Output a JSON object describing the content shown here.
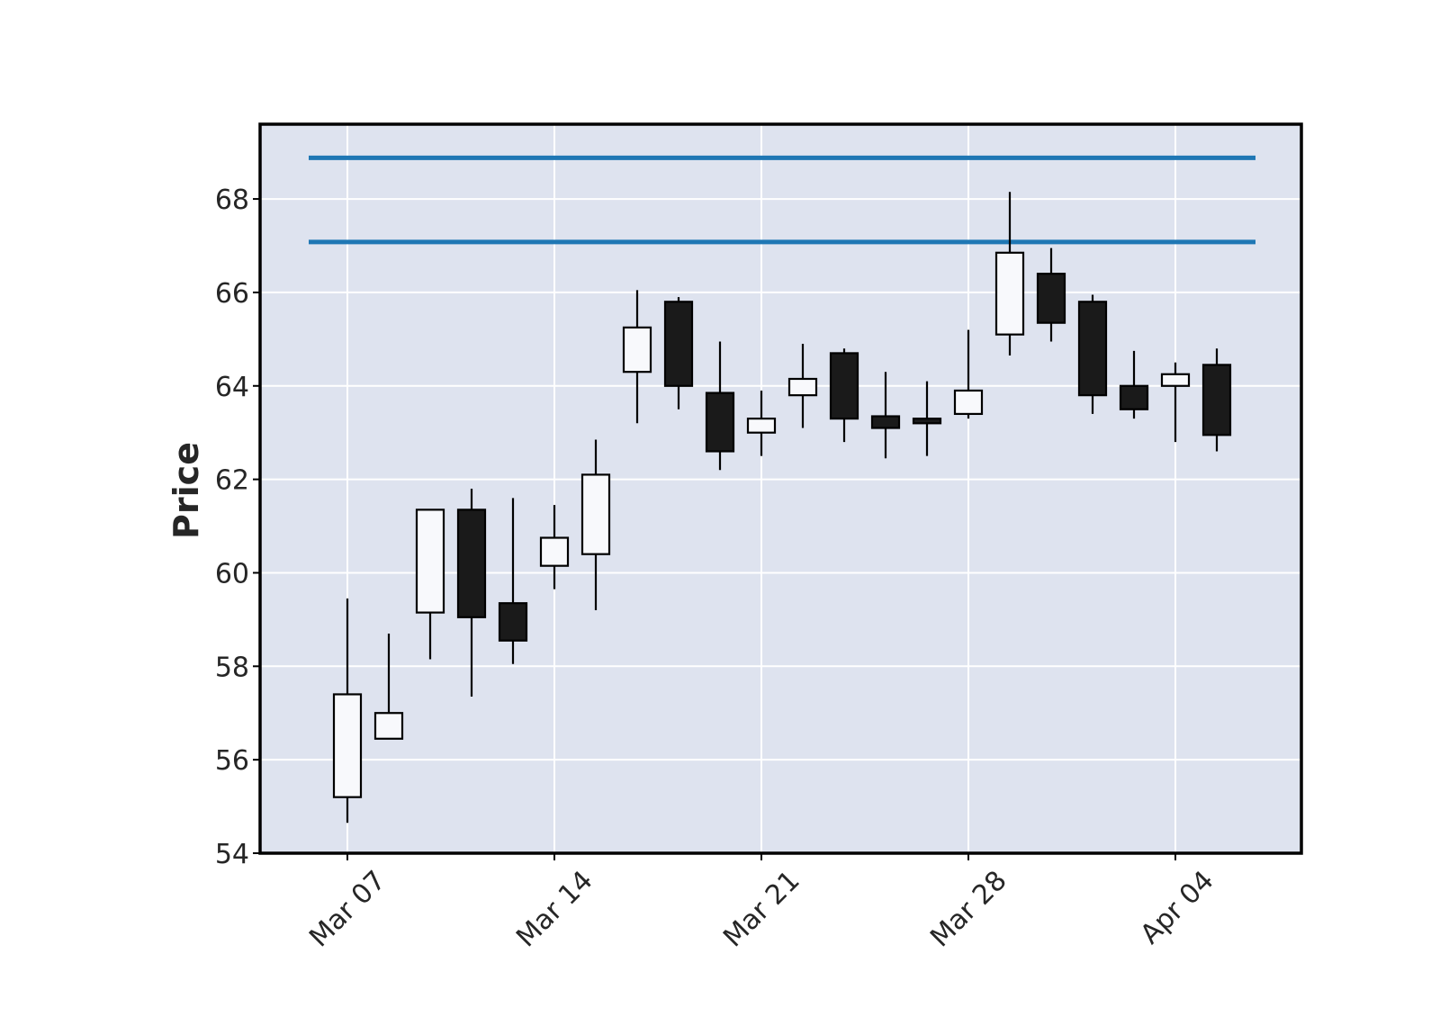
{
  "chart_data": {
    "type": "candlestick",
    "ylabel": "Price",
    "ylim": [
      54,
      69.6
    ],
    "grid": true,
    "colors": {
      "background": "#dee3ef",
      "grid": "#ffffff",
      "up_fill": "#f8f9fc",
      "down_fill": "#1a1a1a",
      "edge": "#000000",
      "hline": "#1f77b4"
    },
    "x_ticks": [
      {
        "label": "Mar 07",
        "index": 0
      },
      {
        "label": "Mar 14",
        "index": 5
      },
      {
        "label": "Mar 21",
        "index": 10
      },
      {
        "label": "Mar 28",
        "index": 15
      },
      {
        "label": "Apr 04",
        "index": 20
      }
    ],
    "y_ticks": [
      54,
      56,
      58,
      60,
      62,
      64,
      66,
      68
    ],
    "hlines": [
      68.88,
      67.08
    ],
    "candles": [
      {
        "open": 55.2,
        "high": 59.45,
        "low": 54.65,
        "close": 57.4
      },
      {
        "open": 56.45,
        "high": 58.7,
        "low": 56.45,
        "close": 57.0
      },
      {
        "open": 59.15,
        "high": 61.35,
        "low": 58.15,
        "close": 61.35
      },
      {
        "open": 61.35,
        "high": 61.8,
        "low": 57.35,
        "close": 59.05
      },
      {
        "open": 59.35,
        "high": 61.6,
        "low": 58.05,
        "close": 58.55
      },
      {
        "open": 60.15,
        "high": 61.45,
        "low": 59.65,
        "close": 60.75
      },
      {
        "open": 60.4,
        "high": 62.85,
        "low": 59.2,
        "close": 62.1
      },
      {
        "open": 64.3,
        "high": 66.05,
        "low": 63.2,
        "close": 65.25
      },
      {
        "open": 65.8,
        "high": 65.9,
        "low": 63.5,
        "close": 64.0
      },
      {
        "open": 63.85,
        "high": 64.95,
        "low": 62.2,
        "close": 62.6
      },
      {
        "open": 63.0,
        "high": 63.9,
        "low": 62.5,
        "close": 63.3
      },
      {
        "open": 63.8,
        "high": 64.9,
        "low": 63.1,
        "close": 64.15
      },
      {
        "open": 64.7,
        "high": 64.8,
        "low": 62.8,
        "close": 63.3
      },
      {
        "open": 63.35,
        "high": 64.3,
        "low": 62.45,
        "close": 63.1
      },
      {
        "open": 63.3,
        "high": 64.1,
        "low": 62.5,
        "close": 63.2
      },
      {
        "open": 63.4,
        "high": 65.2,
        "low": 63.3,
        "close": 63.9
      },
      {
        "open": 65.1,
        "high": 68.15,
        "low": 64.65,
        "close": 66.85
      },
      {
        "open": 66.4,
        "high": 66.95,
        "low": 64.95,
        "close": 65.35
      },
      {
        "open": 65.8,
        "high": 65.95,
        "low": 63.4,
        "close": 63.8
      },
      {
        "open": 64.0,
        "high": 64.75,
        "low": 63.3,
        "close": 63.5
      },
      {
        "open": 64.0,
        "high": 64.5,
        "low": 62.8,
        "close": 64.25
      },
      {
        "open": 64.45,
        "high": 64.8,
        "low": 62.6,
        "close": 62.95
      }
    ]
  }
}
